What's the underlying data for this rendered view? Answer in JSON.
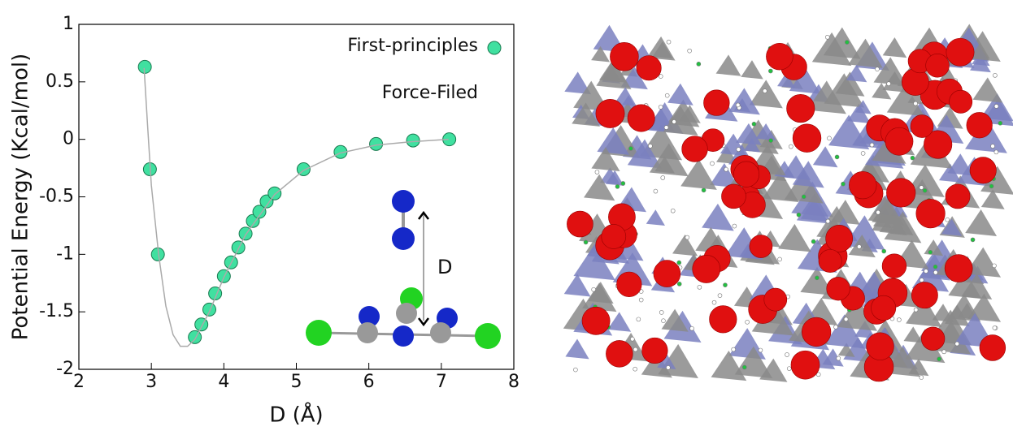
{
  "chart_data": {
    "type": "scatter",
    "x_label": "D (Å)",
    "y_label": "Potential Energy (Kcal/mol)",
    "xlim": [
      2,
      8
    ],
    "xticks": [
      2,
      3,
      4,
      5,
      6,
      7,
      8
    ],
    "ylim": [
      -2,
      1
    ],
    "yticks": [
      -2,
      -1.5,
      -1,
      -0.5,
      0,
      0.5,
      1
    ],
    "series": [
      {
        "name": "First-principles",
        "color": "#40e0a0",
        "style": "marker",
        "x": [
          2.91,
          2.98,
          3.09,
          3.6,
          3.69,
          3.8,
          3.88,
          4.0,
          4.1,
          4.2,
          4.3,
          4.4,
          4.49,
          4.59,
          4.7,
          5.1,
          5.61,
          6.1,
          6.61,
          7.11
        ],
        "values": [
          0.63,
          -0.26,
          -1.0,
          -1.72,
          -1.61,
          -1.48,
          -1.34,
          -1.19,
          -1.07,
          -0.94,
          -0.82,
          -0.71,
          -0.63,
          -0.54,
          -0.47,
          -0.26,
          -0.11,
          -0.04,
          -0.01,
          0.0
        ]
      },
      {
        "name": "Force-Filed",
        "color": "#aaaaaa",
        "style": "line",
        "x": [
          2.9,
          2.95,
          3.0,
          3.1,
          3.2,
          3.3,
          3.4,
          3.5,
          3.6,
          3.8,
          4.0,
          4.3,
          4.7,
          5.1,
          5.6,
          6.1,
          6.6,
          7.1
        ],
        "values": [
          0.62,
          0.1,
          -0.4,
          -1.0,
          -1.45,
          -1.7,
          -1.8,
          -1.8,
          -1.74,
          -1.5,
          -1.2,
          -0.83,
          -0.48,
          -0.27,
          -0.12,
          -0.05,
          -0.02,
          0.0
        ]
      }
    ],
    "annotations": [
      "D"
    ]
  }
}
